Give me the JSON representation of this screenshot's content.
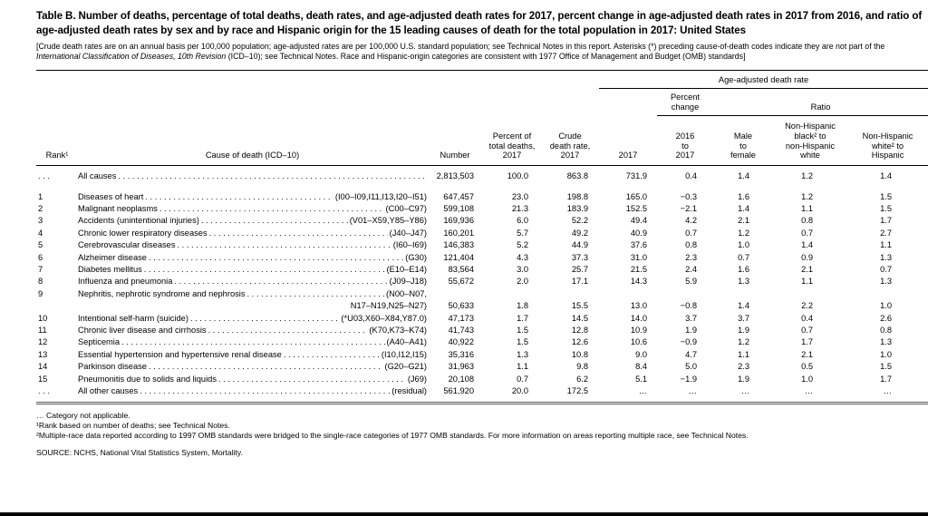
{
  "page": {
    "title": "Table B. Number of deaths, percentage of total deaths, death rates, and age-adjusted death rates for 2017, percent change in age-adjusted death rates in 2017 from 2016, and ratio of age-adjusted death rates by sex and by race and Hispanic origin for the 15 leading causes of death for the total population in 2017: United States",
    "note": {
      "pre": "[Crude death rates are on an annual basis per 100,000 population; age-adjusted rates are per 100,000 U.S. standard population; see Technical Notes in this report.  Asterisks (*) preceding cause-of-death codes indicate they are not part of the ",
      "italic": "International Classification of Diseases, 10th Revision",
      "post": " (ICD–10); see Technical Notes. Race and Hispanic-origin categories are consistent with 1977 Office of Management and Budget (OMB) standards]"
    }
  },
  "table": {
    "group_headers": {
      "age_adjusted": "Age-adjusted death rate",
      "percent_change": "Percent\nchange",
      "ratio": "Ratio"
    },
    "columns": {
      "rank": "Rank¹",
      "cause": "Cause of death (ICD–10)",
      "number": "Number",
      "percent": "Percent of\ntotal deaths,\n2017",
      "crude": "Crude\ndeath rate,\n2017",
      "aadr": "2017",
      "change": "2016\nto\n2017",
      "mf": "Male\nto\nfemale",
      "bw": "Non-Hispanic\nblack² to\nnon-Hispanic\nwhite",
      "wh": "Non-Hispanic\nwhite² to\nHispanic"
    },
    "rows": [
      {
        "rank": ". . .",
        "cause": "All causes",
        "code": "",
        "number": "2,813,503",
        "percent": "100.0",
        "crude": "863.8",
        "aadr": "731.9",
        "change": "0.4",
        "mf": "1.4",
        "bw": "1.2",
        "wh": "1.4",
        "spacer_after": true
      },
      {
        "rank": "1",
        "cause": "Diseases of heart",
        "code": "(I00–I09,I11,I13,I20–I51)",
        "number": "647,457",
        "percent": "23.0",
        "crude": "198.8",
        "aadr": "165.0",
        "change": "−0.3",
        "mf": "1.6",
        "bw": "1.2",
        "wh": "1.5"
      },
      {
        "rank": "2",
        "cause": "Malignant neoplasms",
        "code": "(C00–C97)",
        "number": "599,108",
        "percent": "21.3",
        "crude": "183.9",
        "aadr": "152.5",
        "change": "−2.1",
        "mf": "1.4",
        "bw": "1.1",
        "wh": "1.5"
      },
      {
        "rank": "3",
        "cause": "Accidents (unintentional injuries)",
        "code": "(V01–X59,Y85–Y86)",
        "number": "169,936",
        "percent": "6.0",
        "crude": "52.2",
        "aadr": "49.4",
        "change": "4.2",
        "mf": "2.1",
        "bw": "0.8",
        "wh": "1.7"
      },
      {
        "rank": "4",
        "cause": "Chronic lower respiratory diseases",
        "code": "(J40–J47)",
        "number": "160,201",
        "percent": "5.7",
        "crude": "49.2",
        "aadr": "40.9",
        "change": "0.7",
        "mf": "1.2",
        "bw": "0.7",
        "wh": "2.7"
      },
      {
        "rank": "5",
        "cause": "Cerebrovascular diseases",
        "code": "(I60–I69)",
        "number": "146,383",
        "percent": "5.2",
        "crude": "44.9",
        "aadr": "37.6",
        "change": "0.8",
        "mf": "1.0",
        "bw": "1.4",
        "wh": "1.1"
      },
      {
        "rank": "6",
        "cause": "Alzheimer disease",
        "code": "(G30)",
        "number": "121,404",
        "percent": "4.3",
        "crude": "37.3",
        "aadr": "31.0",
        "change": "2.3",
        "mf": "0.7",
        "bw": "0.9",
        "wh": "1.3"
      },
      {
        "rank": "7",
        "cause": "Diabetes mellitus",
        "code": "(E10–E14)",
        "number": "83,564",
        "percent": "3.0",
        "crude": "25.7",
        "aadr": "21.5",
        "change": "2.4",
        "mf": "1.6",
        "bw": "2.1",
        "wh": "0.7"
      },
      {
        "rank": "8",
        "cause": "Influenza and pneumonia",
        "code": "(J09–J18)",
        "number": "55,672",
        "percent": "2.0",
        "crude": "17.1",
        "aadr": "14.3",
        "change": "5.9",
        "mf": "1.3",
        "bw": "1.1",
        "wh": "1.3"
      },
      {
        "rank": "9",
        "cause": "Nephritis, nephrotic syndrome and nephrosis",
        "code": "(N00–N07,",
        "code2": "N17–N19,N25–N27)",
        "number": "50,633",
        "percent": "1.8",
        "crude": "15.5",
        "aadr": "13.0",
        "change": "−0.8",
        "mf": "1.4",
        "bw": "2.2",
        "wh": "1.0"
      },
      {
        "rank": "10",
        "cause": "Intentional self-harm (suicide)",
        "code": "(*U03,X60–X84,Y87.0)",
        "number": "47,173",
        "percent": "1.7",
        "crude": "14.5",
        "aadr": "14.0",
        "change": "3.7",
        "mf": "3.7",
        "bw": "0.4",
        "wh": "2.6"
      },
      {
        "rank": "11",
        "cause": "Chronic liver disease and cirrhosis",
        "code": "(K70,K73–K74)",
        "number": "41,743",
        "percent": "1.5",
        "crude": "12.8",
        "aadr": "10.9",
        "change": "1.9",
        "mf": "1.9",
        "bw": "0.7",
        "wh": "0.8"
      },
      {
        "rank": "12",
        "cause": "Septicemia",
        "code": "(A40–A41)",
        "number": "40,922",
        "percent": "1.5",
        "crude": "12.6",
        "aadr": "10.6",
        "change": "−0.9",
        "mf": "1.2",
        "bw": "1.7",
        "wh": "1.3"
      },
      {
        "rank": "13",
        "cause": "Essential hypertension and hypertensive renal disease",
        "code": "(I10,I12,I15)",
        "number": "35,316",
        "percent": "1.3",
        "crude": "10.8",
        "aadr": "9.0",
        "change": "4.7",
        "mf": "1.1",
        "bw": "2.1",
        "wh": "1.0"
      },
      {
        "rank": "14",
        "cause": "Parkinson disease",
        "code": "(G20–G21)",
        "number": "31,963",
        "percent": "1.1",
        "crude": "9.8",
        "aadr": "8.4",
        "change": "5.0",
        "mf": "2.3",
        "bw": "0.5",
        "wh": "1.5"
      },
      {
        "rank": "15",
        "cause": "Pneumonitis due to solids and liquids",
        "code": "(J69)",
        "number": "20,108",
        "percent": "0.7",
        "crude": "6.2",
        "aadr": "5.1",
        "change": "−1.9",
        "mf": "1.9",
        "bw": "1.0",
        "wh": "1.7"
      },
      {
        "rank": ". . .",
        "cause": "All other causes",
        "code": "(residual)",
        "number": "561,920",
        "percent": "20.0",
        "crude": "172.5",
        "aadr": "…",
        "change": "…",
        "mf": "…",
        "bw": "…",
        "wh": "…"
      }
    ]
  },
  "footnotes": {
    "fn0": "… Category not applicable.",
    "fn1": "¹Rank based on number of deaths; see Technical Notes.",
    "fn2": "²Multiple-race data reported according to 1997 OMB standards were bridged to the single-race categories of 1977 OMB standards. For more information on areas reporting multiple race, see Technical Notes.",
    "source": "SOURCE: NCHS, National Vital Statistics System, Mortality."
  }
}
